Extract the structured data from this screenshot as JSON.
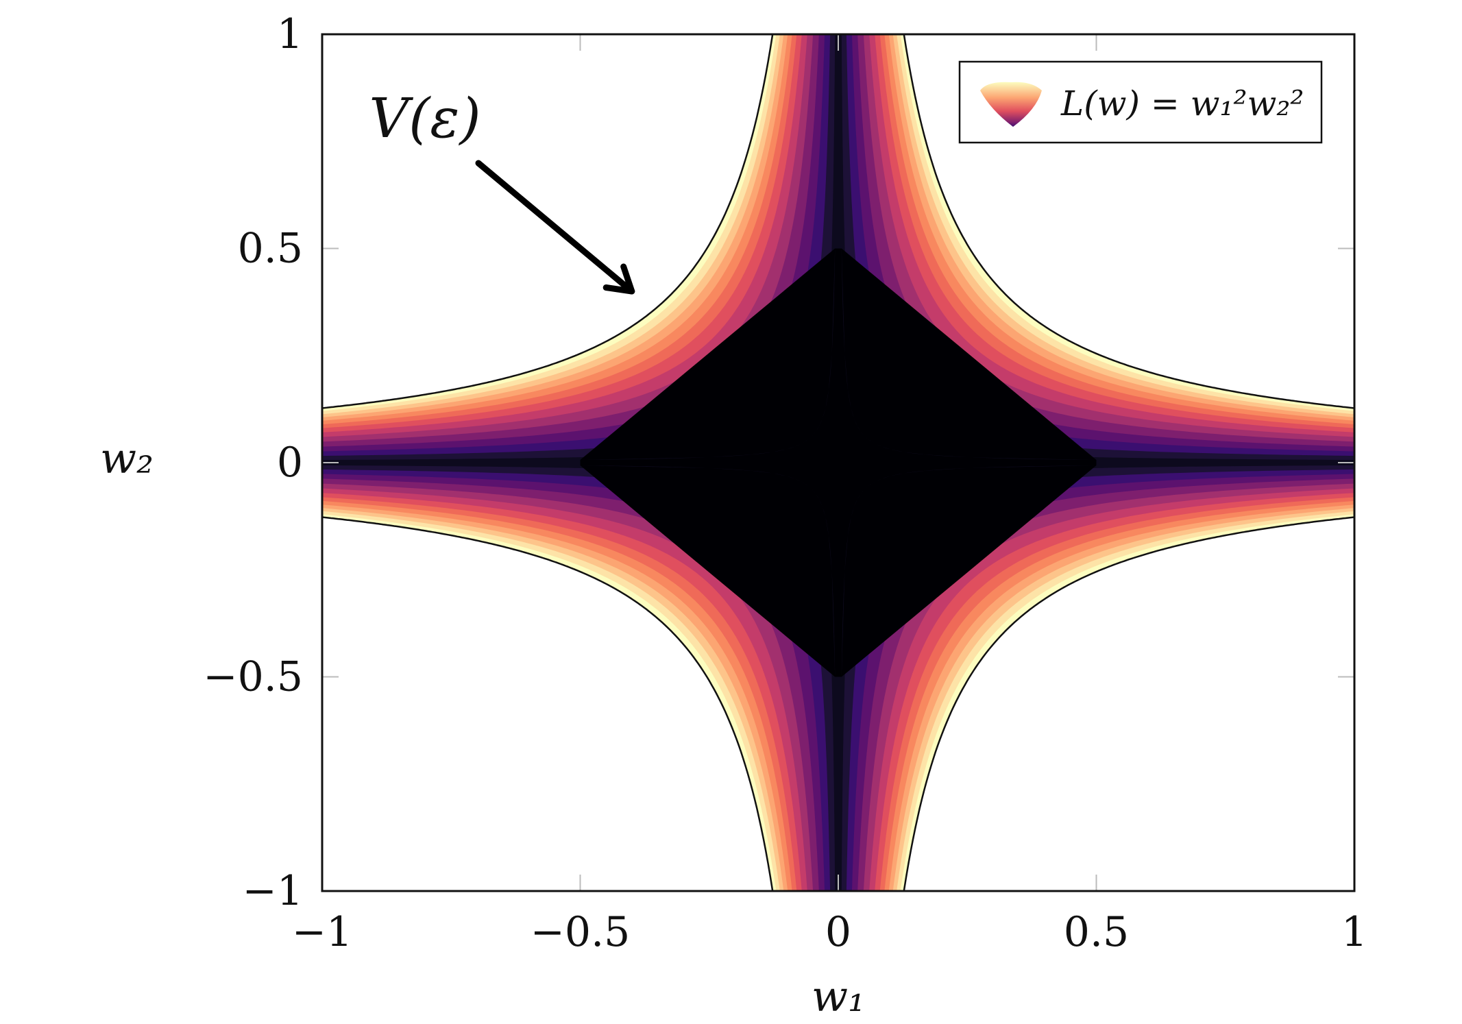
{
  "chart_data": {
    "type": "heatmap",
    "title": "",
    "function": "L(w) = w1^2 w2^2",
    "xlabel": "w₁",
    "ylabel": "w₂",
    "xlim": [
      -1,
      1
    ],
    "ylim": [
      -1,
      1
    ],
    "x_ticks": [
      -1,
      -0.5,
      0,
      0.5,
      1
    ],
    "x_tick_labels": [
      "−1",
      "−0.5",
      "0",
      "0.5",
      "1"
    ],
    "y_ticks": [
      -1,
      -0.5,
      0,
      0.5,
      1
    ],
    "y_tick_labels": [
      "−1",
      "−0.5",
      "0",
      "0.5",
      "1"
    ],
    "contour_levels": [
      0,
      4e-05,
      0.00025,
      0.0007,
      0.0014,
      0.0024,
      0.0036,
      0.005,
      0.0065,
      0.008,
      0.0096,
      0.0112,
      0.0128,
      0.0145,
      0.0162
    ],
    "level_colors": [
      "#000004",
      "#0d0a1e",
      "#1d1137",
      "#3b0f70",
      "#5c126e",
      "#7e1f6e",
      "#a2306e",
      "#c43c6a",
      "#e04f5e",
      "#ef6a58",
      "#f8885f",
      "#fca572",
      "#fdc48a",
      "#fde3a7",
      "#fcfdbf"
    ],
    "outer_boundary": {
      "value": 0.0162,
      "label": "V(ε)"
    },
    "inner_region_extent": 0.5,
    "legend": {
      "text": "L(w) = w₁²w₂²",
      "position": "top-right"
    },
    "annotation": {
      "text": "V(ε)",
      "arrow_to": [
        -0.4,
        0.4
      ]
    },
    "grid": false
  }
}
